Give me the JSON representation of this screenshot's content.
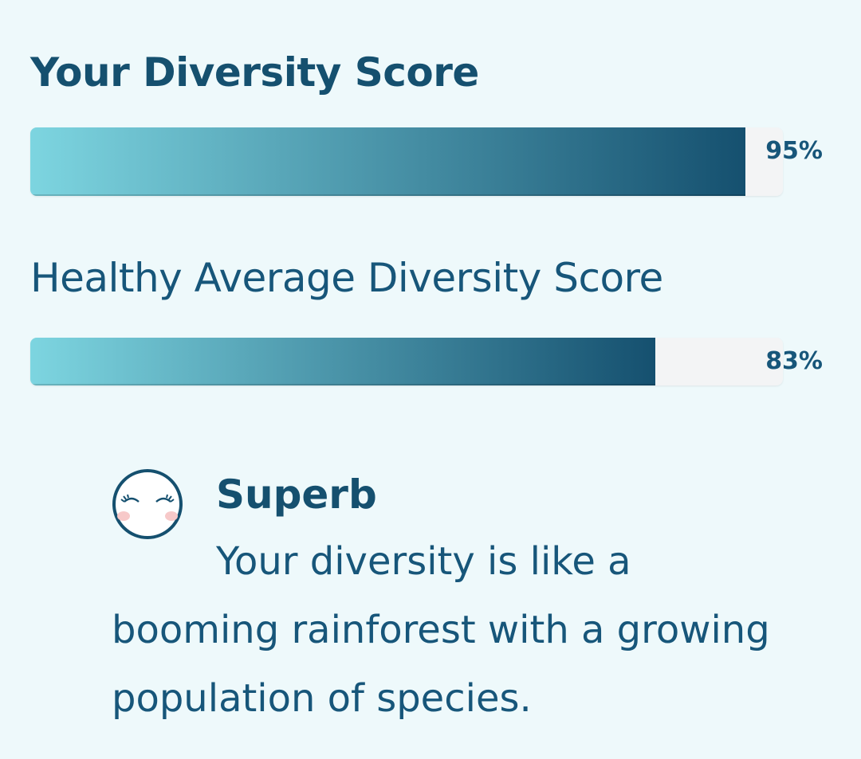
{
  "your_score": {
    "label": "Your Diversity Score",
    "value_text": "95%",
    "value": 95
  },
  "average_score": {
    "label": "Healthy Average Diversity Score",
    "value_text": "83%",
    "value": 83
  },
  "result": {
    "icon": "smiling-face-icon",
    "rating": "Superb",
    "message": "Your diversity is like a booming rainforest with a growing population of species."
  },
  "colors": {
    "primary": "#15506f",
    "bar_start": "#7dd5e0",
    "background": "#eef9fb"
  }
}
